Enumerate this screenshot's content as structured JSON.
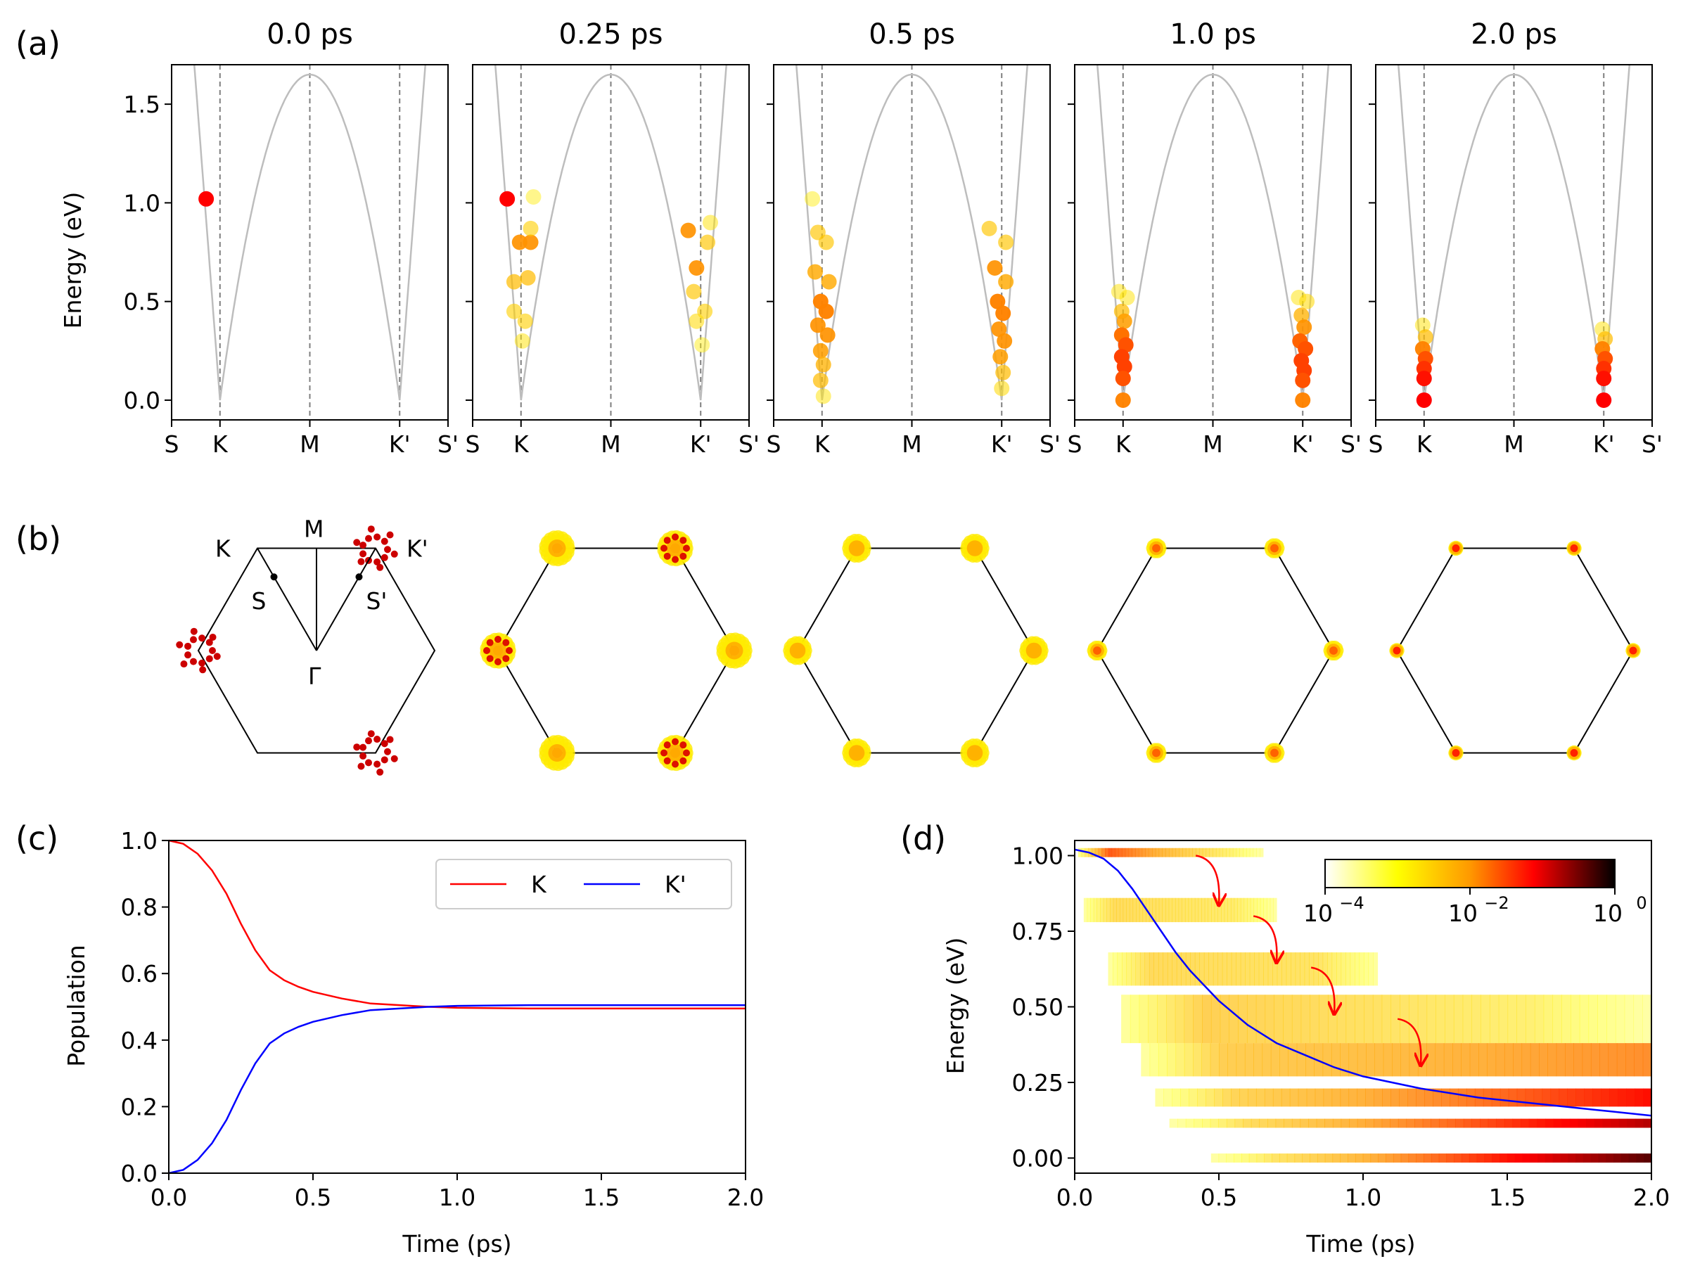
{
  "panel_letters": [
    "(a)",
    "(b)",
    "(c)",
    "(d)"
  ],
  "chart_data": [
    {
      "id": "a",
      "type": "scatter",
      "title_list": [
        "0.0 ps",
        "0.25 ps",
        "0.5 ps",
        "1.0 ps",
        "2.0 ps"
      ],
      "ylabel": "Energy (eV)",
      "ylim": [
        -0.1,
        1.7
      ],
      "yticks": [
        0.0,
        0.5,
        1.0,
        1.5
      ],
      "ytick_labels": [
        "0.0",
        "0.5",
        "1.0",
        "1.5"
      ],
      "xlim": [
        -1.0,
        1.0
      ],
      "xtick_pos": [
        -1.0,
        -0.65,
        0.0,
        0.65,
        1.0
      ],
      "xtick_labels": [
        "S",
        "K",
        "M",
        "K'",
        "S'"
      ],
      "band_color": "#bdbdbd",
      "valley_time_index": [
        0.0,
        0.25,
        0.5,
        1.0,
        2.0
      ],
      "snapshots": [
        {
          "time": "0.0 ps",
          "points": [
            {
              "x": -0.75,
              "e": 1.02,
              "w": 1.0
            }
          ]
        },
        {
          "time": "0.25 ps",
          "points": [
            {
              "x": -0.75,
              "e": 1.02,
              "w": 1.0
            },
            {
              "x": -0.66,
              "e": 0.8,
              "w": 0.55
            },
            {
              "x": -0.58,
              "e": 0.8,
              "w": 0.55
            },
            {
              "x": -0.7,
              "e": 0.6,
              "w": 0.35
            },
            {
              "x": -0.6,
              "e": 0.62,
              "w": 0.35
            },
            {
              "x": -0.7,
              "e": 0.45,
              "w": 0.25
            },
            {
              "x": -0.62,
              "e": 0.4,
              "w": 0.25
            },
            {
              "x": -0.58,
              "e": 0.87,
              "w": 0.25
            },
            {
              "x": -0.64,
              "e": 0.3,
              "w": 0.15
            },
            {
              "x": -0.56,
              "e": 1.03,
              "w": 0.1
            },
            {
              "x": 0.56,
              "e": 0.86,
              "w": 0.55
            },
            {
              "x": 0.62,
              "e": 0.67,
              "w": 0.55
            },
            {
              "x": 0.7,
              "e": 0.8,
              "w": 0.3
            },
            {
              "x": 0.6,
              "e": 0.55,
              "w": 0.3
            },
            {
              "x": 0.68,
              "e": 0.45,
              "w": 0.25
            },
            {
              "x": 0.62,
              "e": 0.4,
              "w": 0.2
            },
            {
              "x": 0.72,
              "e": 0.9,
              "w": 0.15
            },
            {
              "x": 0.66,
              "e": 0.28,
              "w": 0.1
            }
          ]
        },
        {
          "time": "0.5 ps",
          "points": [
            {
              "x": -0.68,
              "e": 0.85,
              "w": 0.3
            },
            {
              "x": -0.62,
              "e": 0.8,
              "w": 0.3
            },
            {
              "x": -0.7,
              "e": 0.65,
              "w": 0.45
            },
            {
              "x": -0.6,
              "e": 0.6,
              "w": 0.45
            },
            {
              "x": -0.66,
              "e": 0.5,
              "w": 0.6
            },
            {
              "x": -0.62,
              "e": 0.45,
              "w": 0.6
            },
            {
              "x": -0.68,
              "e": 0.38,
              "w": 0.55
            },
            {
              "x": -0.61,
              "e": 0.33,
              "w": 0.55
            },
            {
              "x": -0.66,
              "e": 0.25,
              "w": 0.5
            },
            {
              "x": -0.64,
              "e": 0.18,
              "w": 0.4
            },
            {
              "x": -0.66,
              "e": 0.1,
              "w": 0.35
            },
            {
              "x": -0.64,
              "e": 0.02,
              "w": 0.15
            },
            {
              "x": -0.72,
              "e": 1.02,
              "w": 0.1
            },
            {
              "x": 0.56,
              "e": 0.87,
              "w": 0.3
            },
            {
              "x": 0.68,
              "e": 0.8,
              "w": 0.3
            },
            {
              "x": 0.6,
              "e": 0.67,
              "w": 0.55
            },
            {
              "x": 0.68,
              "e": 0.6,
              "w": 0.45
            },
            {
              "x": 0.62,
              "e": 0.5,
              "w": 0.6
            },
            {
              "x": 0.66,
              "e": 0.44,
              "w": 0.6
            },
            {
              "x": 0.63,
              "e": 0.36,
              "w": 0.55
            },
            {
              "x": 0.67,
              "e": 0.3,
              "w": 0.55
            },
            {
              "x": 0.64,
              "e": 0.22,
              "w": 0.5
            },
            {
              "x": 0.66,
              "e": 0.14,
              "w": 0.35
            },
            {
              "x": 0.65,
              "e": 0.06,
              "w": 0.2
            }
          ]
        },
        {
          "time": "1.0 ps",
          "points": [
            {
              "x": -0.68,
              "e": 0.55,
              "w": 0.15
            },
            {
              "x": -0.62,
              "e": 0.52,
              "w": 0.15
            },
            {
              "x": -0.66,
              "e": 0.45,
              "w": 0.35
            },
            {
              "x": -0.64,
              "e": 0.4,
              "w": 0.5
            },
            {
              "x": -0.66,
              "e": 0.33,
              "w": 0.65
            },
            {
              "x": -0.63,
              "e": 0.28,
              "w": 0.75
            },
            {
              "x": -0.66,
              "e": 0.22,
              "w": 0.8
            },
            {
              "x": -0.64,
              "e": 0.17,
              "w": 0.8
            },
            {
              "x": -0.65,
              "e": 0.11,
              "w": 0.75
            },
            {
              "x": -0.65,
              "e": 0.0,
              "w": 0.6
            },
            {
              "x": 0.62,
              "e": 0.52,
              "w": 0.15
            },
            {
              "x": 0.68,
              "e": 0.5,
              "w": 0.2
            },
            {
              "x": 0.64,
              "e": 0.43,
              "w": 0.4
            },
            {
              "x": 0.66,
              "e": 0.37,
              "w": 0.55
            },
            {
              "x": 0.63,
              "e": 0.3,
              "w": 0.7
            },
            {
              "x": 0.67,
              "e": 0.26,
              "w": 0.75
            },
            {
              "x": 0.64,
              "e": 0.2,
              "w": 0.8
            },
            {
              "x": 0.66,
              "e": 0.15,
              "w": 0.8
            },
            {
              "x": 0.65,
              "e": 0.1,
              "w": 0.75
            },
            {
              "x": 0.65,
              "e": 0.0,
              "w": 0.6
            }
          ]
        },
        {
          "time": "2.0 ps",
          "points": [
            {
              "x": -0.66,
              "e": 0.38,
              "w": 0.15
            },
            {
              "x": -0.64,
              "e": 0.32,
              "w": 0.35
            },
            {
              "x": -0.66,
              "e": 0.26,
              "w": 0.6
            },
            {
              "x": -0.64,
              "e": 0.21,
              "w": 0.75
            },
            {
              "x": -0.65,
              "e": 0.16,
              "w": 0.85
            },
            {
              "x": -0.65,
              "e": 0.11,
              "w": 0.95
            },
            {
              "x": -0.65,
              "e": 0.0,
              "w": 1.0
            },
            {
              "x": 0.64,
              "e": 0.36,
              "w": 0.15
            },
            {
              "x": 0.66,
              "e": 0.31,
              "w": 0.35
            },
            {
              "x": 0.64,
              "e": 0.26,
              "w": 0.6
            },
            {
              "x": 0.66,
              "e": 0.21,
              "w": 0.75
            },
            {
              "x": 0.65,
              "e": 0.16,
              "w": 0.85
            },
            {
              "x": 0.65,
              "e": 0.11,
              "w": 0.95
            },
            {
              "x": 0.65,
              "e": 0.0,
              "w": 1.0
            }
          ]
        }
      ]
    },
    {
      "id": "b",
      "type": "scatter",
      "description_labels": [
        "K",
        "M",
        "K'",
        "S",
        "S'",
        "Γ"
      ],
      "spread_by_time": [
        0.9,
        0.75,
        0.55,
        0.3,
        0.15
      ],
      "intensity_by_time": [
        1.0,
        0.45,
        0.4,
        0.7,
        0.9
      ]
    },
    {
      "id": "c",
      "type": "line",
      "xlabel": "Time (ps)",
      "ylabel": "Population",
      "xlim": [
        0.0,
        2.0
      ],
      "ylim": [
        0.0,
        1.0
      ],
      "xticks": [
        0.0,
        0.5,
        1.0,
        1.5,
        2.0
      ],
      "xtick_labels": [
        "0.0",
        "0.5",
        "1.0",
        "1.5",
        "2.0"
      ],
      "yticks": [
        0.0,
        0.2,
        0.4,
        0.6,
        0.8,
        1.0
      ],
      "ytick_labels": [
        "0.0",
        "0.2",
        "0.4",
        "0.6",
        "0.8",
        "1.0"
      ],
      "x": [
        0.0,
        0.05,
        0.1,
        0.15,
        0.2,
        0.25,
        0.3,
        0.35,
        0.4,
        0.45,
        0.5,
        0.6,
        0.7,
        0.8,
        0.9,
        1.0,
        1.25,
        1.5,
        1.75,
        2.0
      ],
      "series": [
        {
          "name": "K",
          "color": "#ff0000",
          "values": [
            1.0,
            0.99,
            0.96,
            0.91,
            0.84,
            0.75,
            0.67,
            0.61,
            0.58,
            0.56,
            0.545,
            0.525,
            0.51,
            0.505,
            0.5,
            0.497,
            0.495,
            0.495,
            0.495,
            0.495
          ]
        },
        {
          "name": "K'",
          "color": "#0000ff",
          "values": [
            0.0,
            0.01,
            0.04,
            0.09,
            0.16,
            0.25,
            0.33,
            0.39,
            0.42,
            0.44,
            0.455,
            0.475,
            0.49,
            0.495,
            0.5,
            0.503,
            0.505,
            0.505,
            0.505,
            0.505
          ]
        }
      ],
      "legend_position": "upper-right"
    },
    {
      "id": "d",
      "type": "heatmap",
      "xlabel": "Time (ps)",
      "ylabel": "Energy (eV)",
      "xlim": [
        0.0,
        2.0
      ],
      "ylim": [
        -0.05,
        1.05
      ],
      "xticks": [
        0.0,
        0.5,
        1.0,
        1.5,
        2.0
      ],
      "xtick_labels": [
        "0.0",
        "0.5",
        "1.0",
        "1.5",
        "2.0"
      ],
      "yticks": [
        0.0,
        0.25,
        0.5,
        0.75,
        1.0
      ],
      "ytick_labels": [
        "0.00",
        "0.25",
        "0.50",
        "0.75",
        "1.00"
      ],
      "colorbar": {
        "scale": "log",
        "min": 0.0001,
        "max": 1,
        "tick_labels": [
          "10",
          "10",
          "10"
        ],
        "tick_exponents": [
          "−4",
          "−2",
          "0"
        ]
      },
      "mean_energy_curve": {
        "color": "#0000ff",
        "x": [
          0.0,
          0.05,
          0.1,
          0.15,
          0.2,
          0.25,
          0.3,
          0.35,
          0.4,
          0.5,
          0.6,
          0.7,
          0.8,
          0.9,
          1.0,
          1.2,
          1.4,
          1.6,
          1.8,
          2.0
        ],
        "values": [
          1.02,
          1.01,
          0.99,
          0.95,
          0.89,
          0.82,
          0.75,
          0.68,
          0.62,
          0.52,
          0.44,
          0.38,
          0.34,
          0.3,
          0.27,
          0.23,
          0.2,
          0.18,
          0.16,
          0.14
        ]
      },
      "bands": [
        {
          "e_lo": 0.995,
          "e_hi": 1.025,
          "t_start": 0.0,
          "t_end": 0.7,
          "i0": 0.5,
          "i1": 0.0
        },
        {
          "e_lo": 0.78,
          "e_hi": 0.86,
          "t_start": 0.02,
          "t_end": 0.7,
          "i0": 0.2,
          "i1": 0.12
        },
        {
          "e_lo": 0.57,
          "e_hi": 0.68,
          "t_start": 0.1,
          "t_end": 1.05,
          "i0": 0.2,
          "i1": 0.15
        },
        {
          "e_lo": 0.38,
          "e_hi": 0.54,
          "t_start": 0.13,
          "t_end": 2.0,
          "i0": 0.25,
          "i1": 0.08
        },
        {
          "e_lo": 0.27,
          "e_hi": 0.38,
          "t_start": 0.2,
          "t_end": 2.0,
          "i0": 0.2,
          "i1": 0.35
        },
        {
          "e_lo": 0.17,
          "e_hi": 0.23,
          "t_start": 0.25,
          "t_end": 2.0,
          "i0": 0.15,
          "i1": 0.5
        },
        {
          "e_lo": 0.1,
          "e_hi": 0.13,
          "t_start": 0.3,
          "t_end": 2.0,
          "i0": 0.1,
          "i1": 0.6
        },
        {
          "e_lo": -0.015,
          "e_hi": 0.015,
          "t_start": 0.42,
          "t_end": 2.0,
          "i0": 0.05,
          "i1": 0.7
        }
      ],
      "arrows": [
        {
          "t": 0.42,
          "e_from": 1.0,
          "t_to": 0.5,
          "e_to": 0.84
        },
        {
          "t": 0.62,
          "e_from": 0.8,
          "t_to": 0.7,
          "e_to": 0.65
        },
        {
          "t": 0.82,
          "e_from": 0.63,
          "t_to": 0.9,
          "e_to": 0.48
        },
        {
          "t": 1.12,
          "e_from": 0.46,
          "t_to": 1.2,
          "e_to": 0.31
        }
      ]
    }
  ]
}
